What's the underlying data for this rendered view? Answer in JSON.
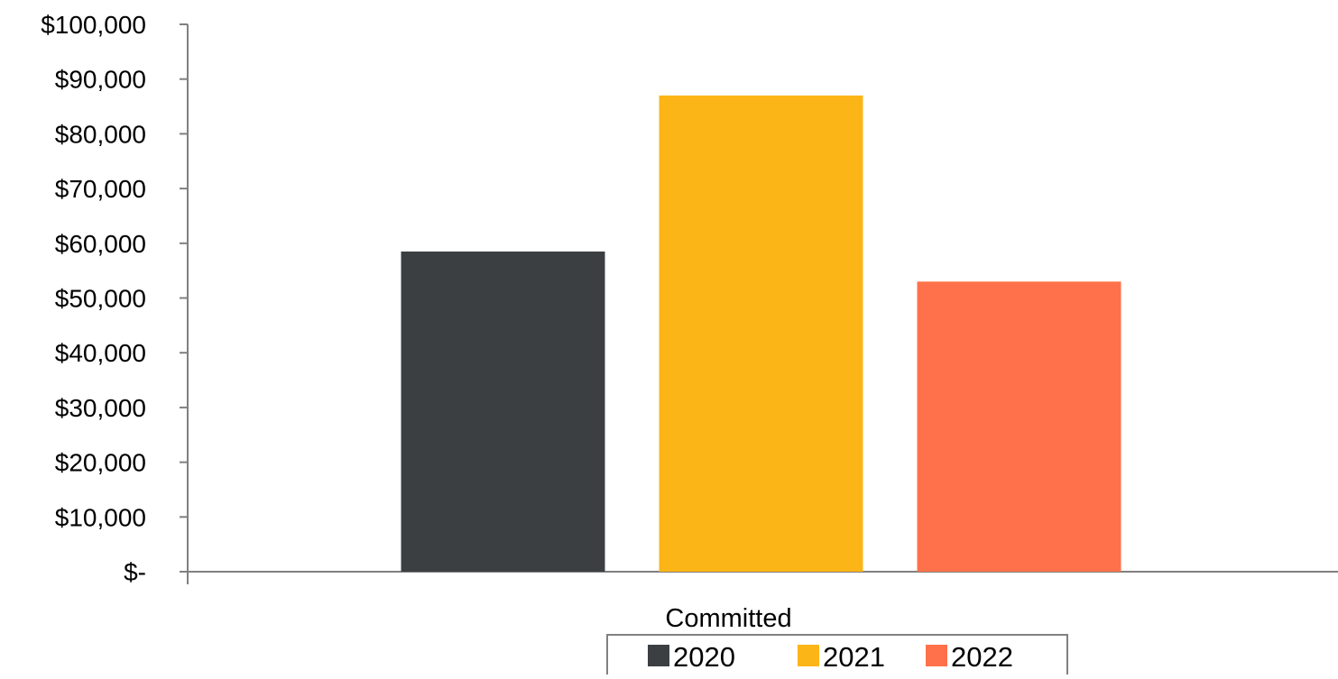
{
  "chart_data": {
    "type": "bar",
    "categories": [
      "Committed"
    ],
    "series": [
      {
        "name": "2020",
        "values": [
          58500
        ],
        "color": "#3b3f42"
      },
      {
        "name": "2021",
        "values": [
          87000
        ],
        "color": "#fcb516"
      },
      {
        "name": "2022",
        "values": [
          53000
        ],
        "color": "#ff714b"
      }
    ],
    "title": "",
    "xlabel": "",
    "ylabel": "",
    "ylim": [
      0,
      100000
    ],
    "y_ticks": [
      {
        "value": 0,
        "label": "$-"
      },
      {
        "value": 10000,
        "label": "$10,000"
      },
      {
        "value": 20000,
        "label": "$20,000"
      },
      {
        "value": 30000,
        "label": "$30,000"
      },
      {
        "value": 40000,
        "label": "$40,000"
      },
      {
        "value": 50000,
        "label": "$50,000"
      },
      {
        "value": 60000,
        "label": "$60,000"
      },
      {
        "value": 70000,
        "label": "$70,000"
      },
      {
        "value": 80000,
        "label": "$80,000"
      },
      {
        "value": 90000,
        "label": "$90,000"
      },
      {
        "value": 100000,
        "label": "$100,000"
      }
    ],
    "grid": false,
    "legend_position": "bottom",
    "axis_color": "#808080"
  }
}
